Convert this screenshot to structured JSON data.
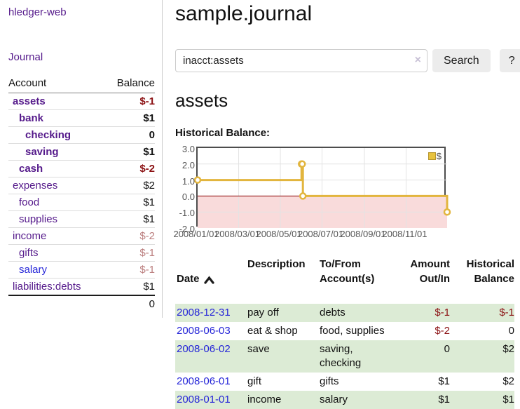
{
  "sidebar": {
    "brand": "hledger-web",
    "journal_link": "Journal",
    "accounts_table": {
      "headers": [
        "Account",
        "Balance"
      ],
      "rows": [
        {
          "name": "assets",
          "indent": 0,
          "bold": true,
          "balance": "$-1",
          "neg": "strong"
        },
        {
          "name": "bank",
          "indent": 1,
          "bold": true,
          "balance": "$1",
          "neg": ""
        },
        {
          "name": "checking",
          "indent": 2,
          "bold": true,
          "balance": "0",
          "neg": ""
        },
        {
          "name": "saving",
          "indent": 2,
          "bold": true,
          "balance": "$1",
          "neg": ""
        },
        {
          "name": "cash",
          "indent": 1,
          "bold": true,
          "balance": "$-2",
          "neg": "strong"
        },
        {
          "name": "expenses",
          "indent": 0,
          "bold": false,
          "balance": "$2",
          "neg": ""
        },
        {
          "name": "food",
          "indent": 1,
          "bold": false,
          "balance": "$1",
          "neg": ""
        },
        {
          "name": "supplies",
          "indent": 1,
          "bold": false,
          "balance": "$1",
          "neg": ""
        },
        {
          "name": "income",
          "indent": 0,
          "bold": false,
          "balance": "$-2",
          "neg": "muted"
        },
        {
          "name": "gifts",
          "indent": 1,
          "bold": false,
          "balance": "$-1",
          "neg": "muted"
        },
        {
          "name": "salary",
          "indent": 1,
          "bold": false,
          "balance": "$-1",
          "neg": "muted",
          "link_style": "blue"
        },
        {
          "name": "liabilities:debts",
          "indent": 0,
          "bold": false,
          "balance": "$1",
          "neg": ""
        }
      ],
      "total": "0"
    }
  },
  "header": {
    "title": "sample.journal"
  },
  "search": {
    "value": "inacct:assets",
    "clear_icon": "×",
    "button_label": "Search",
    "help_label": "?"
  },
  "account_page": {
    "title": "assets",
    "chart_label": "Historical Balance:"
  },
  "chart_data": {
    "type": "line",
    "style": "step",
    "title": "Historical Balance",
    "xlim": [
      "2008/01/01",
      "2008/12/31"
    ],
    "ylim": [
      -2,
      3
    ],
    "y_ticks": [
      3.0,
      2.0,
      1.0,
      0.0,
      -1.0,
      -2.0
    ],
    "x_ticks": [
      "2008/01/01",
      "2008/03/01",
      "2008/05/01",
      "2008/07/01",
      "2008/09/01",
      "2008/11/01"
    ],
    "grid": true,
    "legend_position": "top-right",
    "series": [
      {
        "name": "$",
        "color": "#e2b53e",
        "points": [
          [
            "2008/01/01",
            1
          ],
          [
            "2008/06/01",
            2
          ],
          [
            "2008/06/02",
            2
          ],
          [
            "2008/06/03",
            0
          ],
          [
            "2008/12/31",
            -1
          ]
        ]
      }
    ],
    "negative_region_color": "#f9dbdb",
    "zero_line_color": "#8b0000",
    "grid_color": "#e3e3e3"
  },
  "register": {
    "columns": [
      "Date",
      "Description",
      "To/From\nAccount(s)",
      "Amount\nOut/In",
      "Historical\nBalance"
    ],
    "rows": [
      {
        "date": "2008-12-31",
        "description": "pay off",
        "accounts": "debts",
        "amount": "$-1",
        "balance": "$-1"
      },
      {
        "date": "2008-06-03",
        "description": "eat & shop",
        "accounts": "food, supplies",
        "amount": "$-2",
        "balance": "0"
      },
      {
        "date": "2008-06-02",
        "description": "save",
        "accounts": "saving, checking",
        "amount": "0",
        "balance": "$2"
      },
      {
        "date": "2008-06-01",
        "description": "gift",
        "accounts": "gifts",
        "amount": "$1",
        "balance": "$2"
      },
      {
        "date": "2008-01-01",
        "description": "income",
        "accounts": "salary",
        "amount": "$1",
        "balance": "$1"
      }
    ]
  },
  "colors": {
    "link_purple": "#551a8b",
    "link_blue": "#2626d8",
    "negative_strong": "#8b1113",
    "negative_muted": "#bb7e7e",
    "row_alt_green": "#dcebd5",
    "chart_gold": "#e2b53e"
  }
}
